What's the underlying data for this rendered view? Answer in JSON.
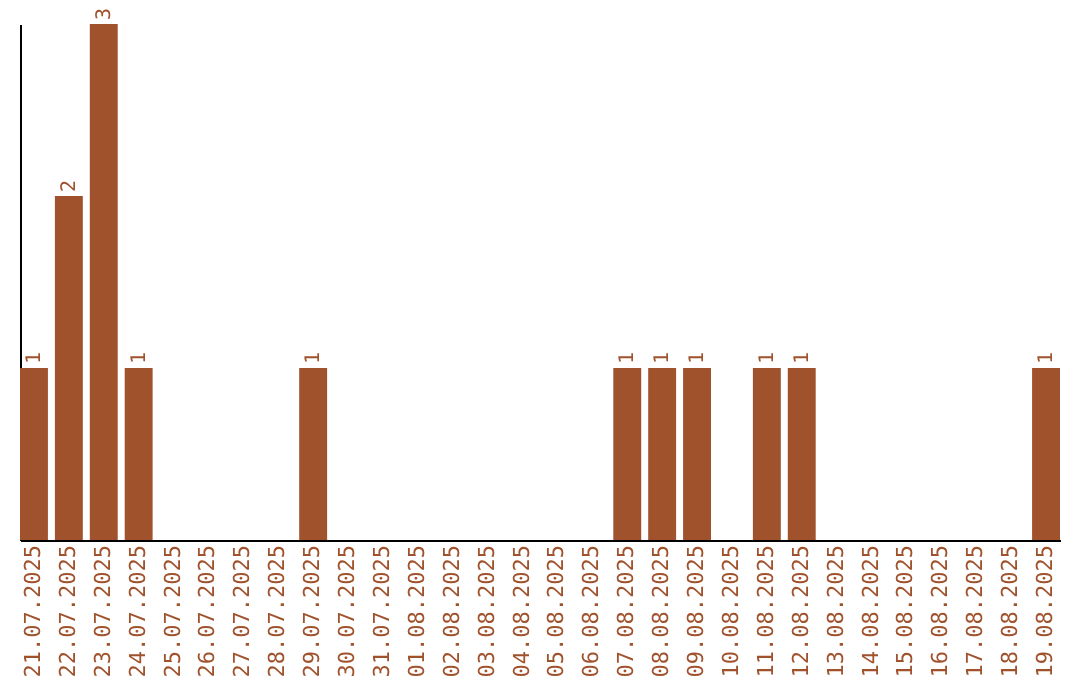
{
  "chart_data": {
    "type": "bar",
    "categories": [
      "21.07.2025",
      "22.07.2025",
      "23.07.2025",
      "24.07.2025",
      "25.07.2025",
      "26.07.2025",
      "27.07.2025",
      "28.07.2025",
      "29.07.2025",
      "30.07.2025",
      "31.07.2025",
      "01.08.2025",
      "02.08.2025",
      "03.08.2025",
      "04.08.2025",
      "05.08.2025",
      "06.08.2025",
      "07.08.2025",
      "08.08.2025",
      "09.08.2025",
      "10.08.2025",
      "11.08.2025",
      "12.08.2025",
      "13.08.2025",
      "14.08.2025",
      "15.08.2025",
      "16.08.2025",
      "17.08.2025",
      "18.08.2025",
      "19.08.2025"
    ],
    "values": [
      1,
      2,
      3,
      1,
      0,
      0,
      0,
      0,
      1,
      0,
      0,
      0,
      0,
      0,
      0,
      0,
      0,
      1,
      1,
      1,
      0,
      1,
      1,
      0,
      0,
      0,
      0,
      0,
      0,
      1
    ],
    "value_labels": [
      "1",
      "2",
      "3",
      "1",
      null,
      null,
      null,
      null,
      "1",
      null,
      null,
      null,
      null,
      null,
      null,
      null,
      null,
      "1",
      "1",
      "1",
      null,
      "1",
      "1",
      null,
      null,
      null,
      null,
      null,
      null,
      "1"
    ],
    "color": "#a0522d",
    "tick_labels": "x",
    "grid": false
  }
}
